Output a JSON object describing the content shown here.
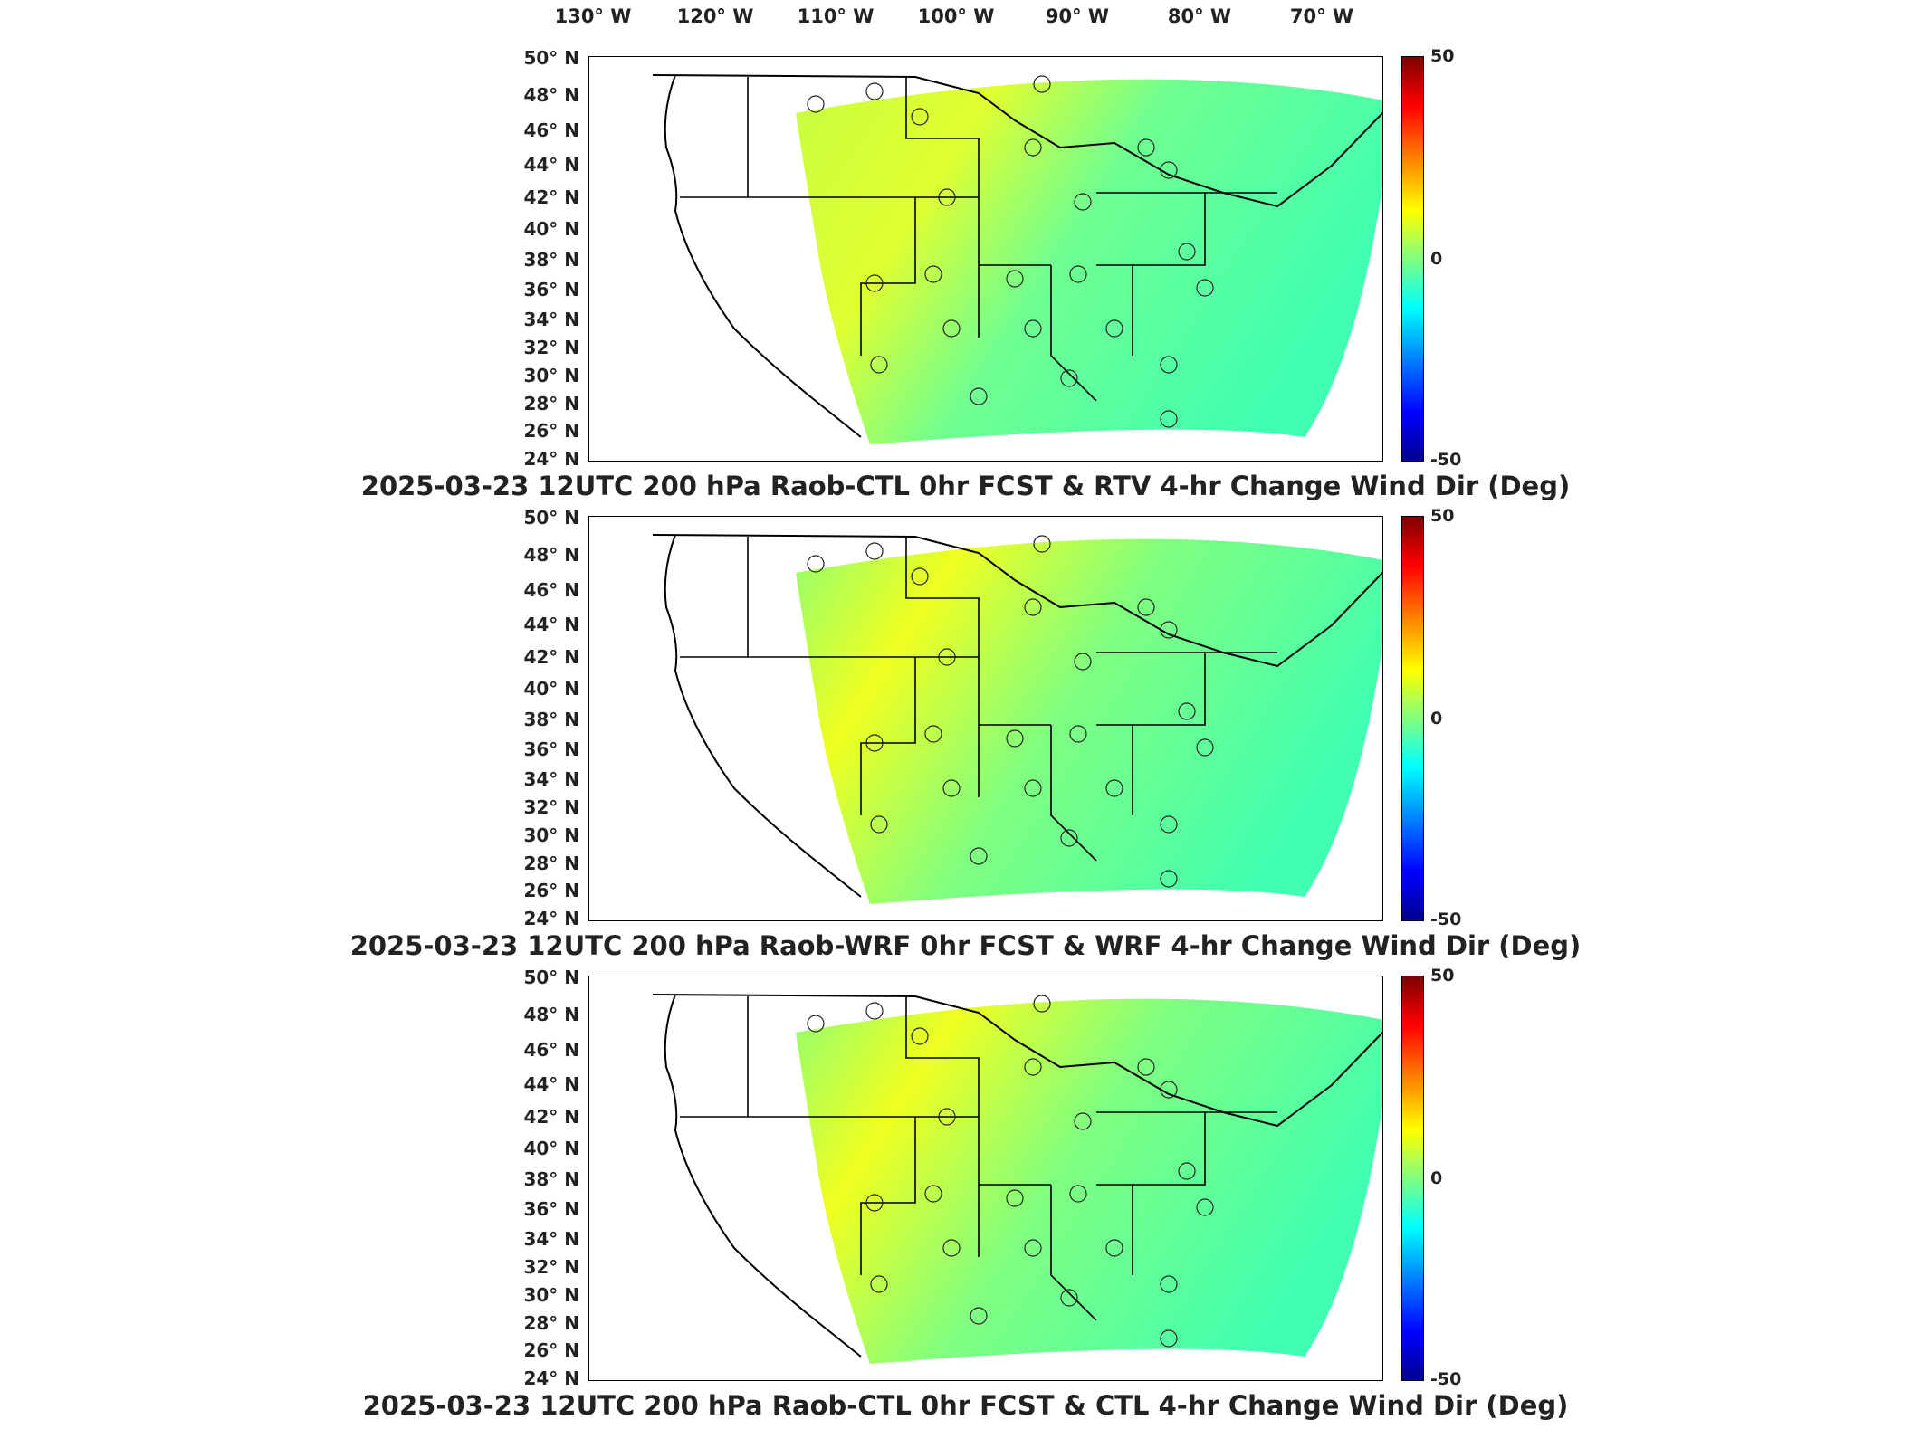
{
  "lon_labels": [
    "130° W",
    "120° W",
    "110° W",
    "100° W",
    "90° W",
    "80° W",
    "70° W"
  ],
  "lat_labels": [
    "50° N",
    "48° N",
    "46° N",
    "44° N",
    "42° N",
    "40° N",
    "38° N",
    "36° N",
    "34° N",
    "32° N",
    "30° N",
    "28° N",
    "26° N",
    "24° N"
  ],
  "colorbar": {
    "max": "50",
    "mid": "0",
    "min": "-50",
    "colors": [
      "#7f0000",
      "#ff0000",
      "#ff8000",
      "#ffff00",
      "#80ff80",
      "#00ffff",
      "#0080ff",
      "#0000ff",
      "#00008f"
    ]
  },
  "panels": [
    {
      "title": "2025-03-23 12UTC 200 hPa Raob-CTL 0hr FCST & RTV 4-hr Change Wind Dir (Deg)"
    },
    {
      "title": "2025-03-23 12UTC 200 hPa Raob-WRF 0hr FCST & WRF 4-hr Change Wind Dir (Deg)"
    },
    {
      "title": "2025-03-23 12UTC 200 hPa Raob-CTL 0hr FCST & CTL 4-hr Change Wind Dir (Deg)"
    }
  ]
}
